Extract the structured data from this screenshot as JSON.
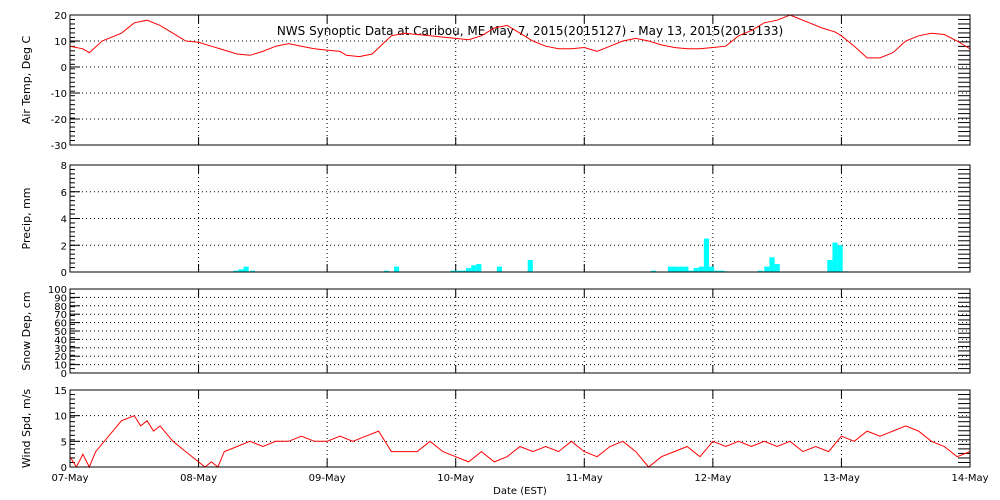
{
  "title": "NWS Synoptic Data at Caribou, ME   May  7, 2015(2015127) - May 13, 2015(2015133)",
  "xlabel": "Date (EST)",
  "colors": {
    "line": "#ff0000",
    "bar": "#00ffff",
    "axis": "#000000"
  },
  "chart_data": [
    {
      "type": "line",
      "ylabel": "Air Temp, Deg C",
      "ylim": [
        -30,
        20
      ],
      "yticks": [
        "-30",
        "-20",
        "-10",
        "0",
        "10",
        "20"
      ],
      "yticks_values": [
        -30,
        -20,
        -10,
        0,
        10,
        20
      ],
      "xlim": [
        0,
        7
      ],
      "xticks": [
        "07-May",
        "08-May",
        "09-May",
        "10-May",
        "11-May",
        "12-May",
        "13-May",
        "14-May"
      ],
      "grid": true,
      "x": [
        0.0,
        0.1,
        0.15,
        0.25,
        0.4,
        0.5,
        0.6,
        0.7,
        0.8,
        0.9,
        1.0,
        1.1,
        1.2,
        1.3,
        1.4,
        1.5,
        1.6,
        1.7,
        1.8,
        1.9,
        2.0,
        2.1,
        2.15,
        2.25,
        2.35,
        2.5,
        2.6,
        2.7,
        2.8,
        2.9,
        3.0,
        3.1,
        3.2,
        3.3,
        3.4,
        3.5,
        3.6,
        3.7,
        3.8,
        3.9,
        4.0,
        4.1,
        4.2,
        4.3,
        4.4,
        4.5,
        4.6,
        4.7,
        4.8,
        4.9,
        5.0,
        5.1,
        5.2,
        5.3,
        5.4,
        5.5,
        5.6,
        5.65,
        5.75,
        5.85,
        5.95,
        6.0,
        6.1,
        6.2,
        6.3,
        6.4,
        6.5,
        6.6,
        6.7,
        6.8,
        6.9,
        7.0
      ],
      "values": [
        8,
        7,
        5.5,
        10,
        13,
        17,
        18,
        16,
        13,
        10,
        9.5,
        8,
        6.5,
        5,
        4.5,
        6,
        8,
        9,
        8,
        7,
        6.5,
        6,
        4.5,
        4,
        5,
        12,
        13,
        12.5,
        12,
        11.5,
        11,
        10.5,
        12,
        15,
        16,
        13,
        10,
        8,
        7,
        7,
        7.5,
        6,
        8,
        10,
        11,
        10,
        8.5,
        7.5,
        7,
        7,
        7.5,
        8,
        12,
        14,
        17,
        18,
        20,
        19,
        17,
        15,
        13.5,
        12,
        8,
        3.5,
        3.5,
        5.5,
        10,
        12,
        13,
        12.5,
        10,
        7
      ]
    },
    {
      "type": "bar",
      "ylabel": "Precip, mm",
      "ylim": [
        0,
        8
      ],
      "yticks": [
        "0",
        "2",
        "4",
        "6",
        "8"
      ],
      "yticks_values": [
        0,
        2,
        4,
        6,
        8
      ],
      "xlim": [
        0,
        7
      ],
      "grid": true,
      "x": [
        1.29,
        1.33,
        1.37,
        1.42,
        2.46,
        2.54,
        2.98,
        3.02,
        3.06,
        3.1,
        3.14,
        3.18,
        3.34,
        3.58,
        4.54,
        4.67,
        4.71,
        4.75,
        4.79,
        4.83,
        4.87,
        4.91,
        4.95,
        4.99,
        5.03,
        5.07,
        5.11,
        5.37,
        5.42,
        5.46,
        5.5,
        5.91,
        5.95,
        5.99,
        6.03
      ],
      "values": [
        0.1,
        0.2,
        0.4,
        0.1,
        0.1,
        0.4,
        0.1,
        0.1,
        0.1,
        0.3,
        0.5,
        0.6,
        0.4,
        0.9,
        0.1,
        0.4,
        0.4,
        0.4,
        0.4,
        0.1,
        0.3,
        0.4,
        2.5,
        0.4,
        0.1,
        0.1,
        0.05,
        0.1,
        0.4,
        1.1,
        0.6,
        0.9,
        2.2,
        2.0,
        0.05
      ]
    },
    {
      "type": "line",
      "ylabel": "Snow Dep, cm",
      "ylim": [
        0,
        100
      ],
      "yticks": [
        "0",
        "10",
        "20",
        "30",
        "40",
        "50",
        "60",
        "70",
        "80",
        "90",
        "100"
      ],
      "yticks_values": [
        0,
        10,
        20,
        30,
        40,
        50,
        60,
        70,
        80,
        90,
        100
      ],
      "xlim": [
        0,
        7
      ],
      "grid": true,
      "x": [],
      "values": []
    },
    {
      "type": "line",
      "ylabel": "Wind Spd, m/s",
      "ylim": [
        0,
        15
      ],
      "yticks": [
        "0",
        "5",
        "10",
        "15"
      ],
      "yticks_values": [
        0,
        5,
        10,
        15
      ],
      "xlim": [
        0,
        7
      ],
      "grid": true,
      "x": [
        0.0,
        0.05,
        0.1,
        0.15,
        0.2,
        0.3,
        0.4,
        0.5,
        0.55,
        0.6,
        0.65,
        0.7,
        0.8,
        0.9,
        1.0,
        1.05,
        1.1,
        1.15,
        1.2,
        1.3,
        1.4,
        1.5,
        1.6,
        1.7,
        1.8,
        1.9,
        2.0,
        2.1,
        2.2,
        2.3,
        2.4,
        2.5,
        2.6,
        2.7,
        2.8,
        2.9,
        3.0,
        3.1,
        3.2,
        3.3,
        3.4,
        3.5,
        3.6,
        3.7,
        3.8,
        3.9,
        4.0,
        4.1,
        4.2,
        4.3,
        4.4,
        4.5,
        4.6,
        4.7,
        4.8,
        4.9,
        5.0,
        5.1,
        5.2,
        5.3,
        5.4,
        5.5,
        5.6,
        5.7,
        5.8,
        5.9,
        6.0,
        6.1,
        6.2,
        6.3,
        6.4,
        6.5,
        6.6,
        6.7,
        6.8,
        6.9,
        7.0
      ],
      "values": [
        2,
        0,
        2.5,
        0,
        3,
        6,
        9,
        10,
        8,
        9,
        7,
        8,
        5,
        3,
        1,
        0,
        1,
        0,
        3,
        4,
        5,
        4,
        5,
        5,
        6,
        5,
        5,
        6,
        5,
        6,
        7,
        3,
        3,
        3,
        5,
        3,
        2,
        1,
        3,
        1,
        2,
        4,
        3,
        4,
        3,
        5,
        3,
        2,
        4,
        5,
        3,
        0,
        2,
        3,
        4,
        2,
        5,
        4,
        5,
        4,
        5,
        4,
        5,
        3,
        4,
        3,
        6,
        5,
        7,
        6,
        7,
        8,
        7,
        5,
        4,
        2,
        3
      ]
    }
  ]
}
